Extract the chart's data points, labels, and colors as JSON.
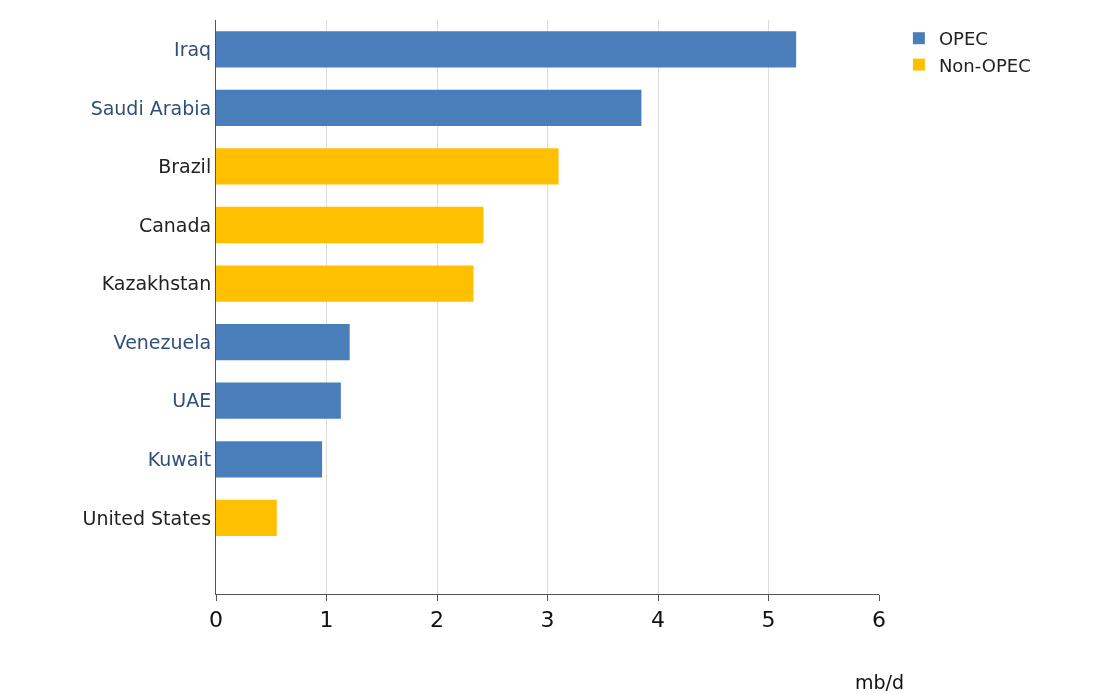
{
  "chart_data": {
    "type": "bar",
    "orientation": "horizontal",
    "stacked": true,
    "xlabel": "mb/d",
    "categories": [
      "Iraq",
      "Saudi Arabia",
      "Brazil",
      "Canada",
      "Kazakhstan",
      "Venezuela",
      "UAE",
      "Kuwait",
      "United States"
    ],
    "series": [
      {
        "name": "OPEC",
        "color": "#4a7ebb",
        "values": [
          5.25,
          3.85,
          null,
          null,
          null,
          1.21,
          1.13,
          0.96,
          null
        ]
      },
      {
        "name": "Non-OPEC",
        "color": "#ffc000",
        "values": [
          null,
          null,
          3.1,
          2.42,
          2.33,
          null,
          null,
          null,
          0.55
        ]
      }
    ],
    "xlim": [
      0,
      6
    ],
    "xticks": [
      0,
      1,
      2,
      3,
      4,
      5,
      6
    ],
    "grid": "x",
    "legend": "top right"
  }
}
